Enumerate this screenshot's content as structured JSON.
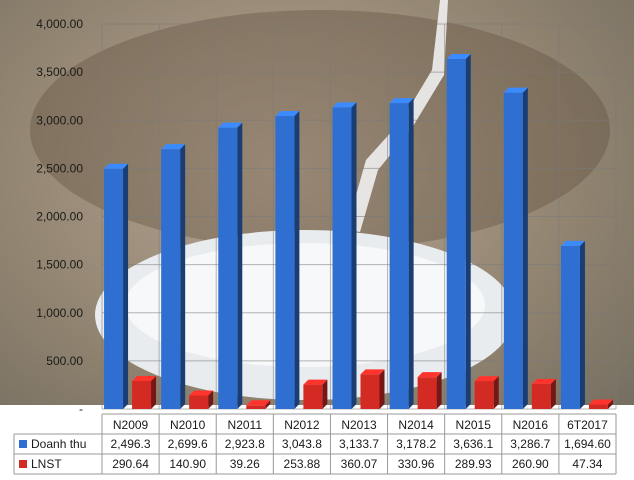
{
  "chart_data": {
    "type": "bar",
    "title": "",
    "xlabel": "",
    "ylabel": "",
    "ylim": [
      0,
      4000
    ],
    "y_ticks": [
      "-",
      "500.00",
      "1,000.00",
      "1,500.00",
      "2,000.00",
      "2,500.00",
      "3,000.00",
      "3,500.00",
      "4,000.00"
    ],
    "grid": true,
    "legend": "bottom-left (data table)",
    "categories": [
      "N2009",
      "N2010",
      "N2011",
      "N2012",
      "N2013",
      "N2014",
      "N2015",
      "N2016",
      "6T2017"
    ],
    "series": [
      {
        "name": "Doanh thu",
        "color": "#2f6fd1",
        "values": [
          2496.3,
          2699.6,
          2923.8,
          3043.8,
          3133.7,
          3178.2,
          3636.1,
          3286.7,
          1694.6
        ],
        "labels": [
          "2,496.3",
          "2,699.6",
          "2,923.8",
          "3,043.8",
          "3,133.7",
          "3,178.2",
          "3,636.1",
          "3,286.7",
          "1,694.60"
        ]
      },
      {
        "name": "LNST",
        "color": "#d42a24",
        "values": [
          290.64,
          140.9,
          39.26,
          253.88,
          360.07,
          330.96,
          289.93,
          260.9,
          47.34
        ],
        "labels": [
          "290.64",
          "140.90",
          "39.26",
          "253.88",
          "360.07",
          "330.96",
          "289.93",
          "260.90",
          "47.34"
        ]
      }
    ]
  }
}
